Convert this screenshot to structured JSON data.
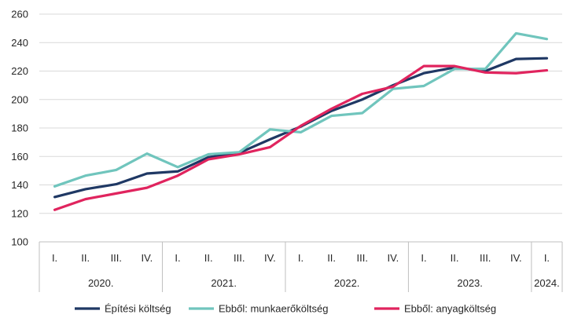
{
  "chart_data": {
    "type": "line",
    "title": "",
    "xlabel": "",
    "ylabel": "",
    "ylim": [
      100,
      260
    ],
    "yticks": [
      100,
      120,
      140,
      160,
      180,
      200,
      220,
      240,
      260
    ],
    "grid": true,
    "legend_position": "bottom",
    "categories": [
      "I.",
      "II.",
      "III.",
      "IV.",
      "I.",
      "II.",
      "III.",
      "IV.",
      "I.",
      "II.",
      "III.",
      "IV.",
      "I.",
      "II.",
      "III.",
      "IV.",
      "I."
    ],
    "years": [
      {
        "label": "2020.",
        "quarters": 4
      },
      {
        "label": "2021.",
        "quarters": 4
      },
      {
        "label": "2022.",
        "quarters": 4
      },
      {
        "label": "2023.",
        "quarters": 4
      },
      {
        "label": "2024.",
        "quarters": 1
      }
    ],
    "series": [
      {
        "name": "Építési költség",
        "color": "#1f3864",
        "values": [
          131.5,
          137,
          140.5,
          148,
          149.5,
          159.5,
          162.5,
          172,
          181,
          192,
          200,
          210,
          218.5,
          222.5,
          220,
          228.5,
          229
        ]
      },
      {
        "name": "Ebből: munkaerőköltség",
        "color": "#70c5bd",
        "values": [
          139,
          146.5,
          150.5,
          162,
          152.5,
          161.5,
          163,
          179,
          177,
          188.5,
          190.5,
          207.5,
          209.5,
          221.5,
          221.5,
          246.5,
          242.5
        ]
      },
      {
        "name": "Ebből: anyagköltség",
        "color": "#e0245e",
        "values": [
          122.5,
          130,
          134,
          138,
          146.5,
          158,
          161.5,
          166.5,
          181.5,
          193.5,
          204,
          209,
          223.5,
          223.5,
          219,
          218.5,
          220.5
        ]
      }
    ]
  }
}
